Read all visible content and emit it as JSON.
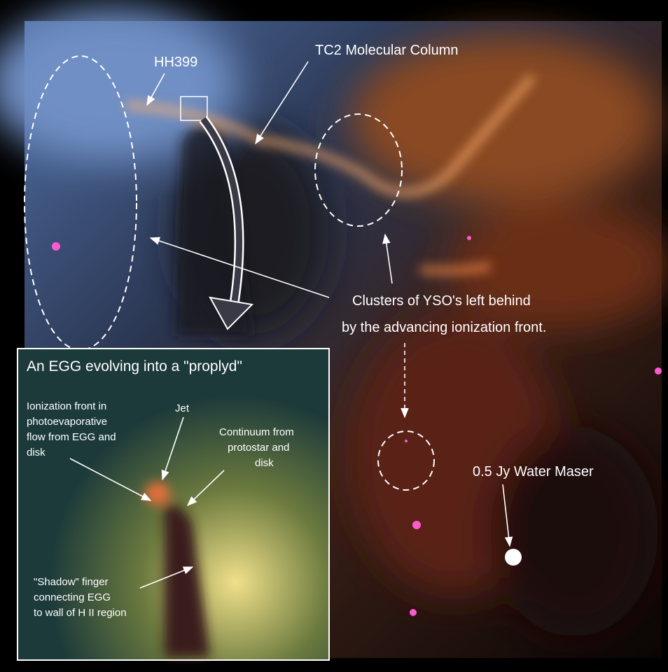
{
  "labels": {
    "hh399": "HH399",
    "column": "TC2 Molecular Column",
    "clusters": [
      "Clusters of YSO's left behind",
      "by the advancing ionization front."
    ],
    "maser": "0.5 Jy Water Maser"
  },
  "inset": {
    "title": "An EGG evolving into a \"proplyd\"",
    "ionization": [
      "Ionization front in",
      "photoevaporative",
      "flow from EGG and",
      "disk"
    ],
    "jet": "Jet",
    "continuum": [
      "Continuum from",
      "protostar and",
      "disk"
    ],
    "shadow": [
      "\"Shadow\" finger",
      "connecting EGG",
      "to wall of H II region"
    ]
  }
}
